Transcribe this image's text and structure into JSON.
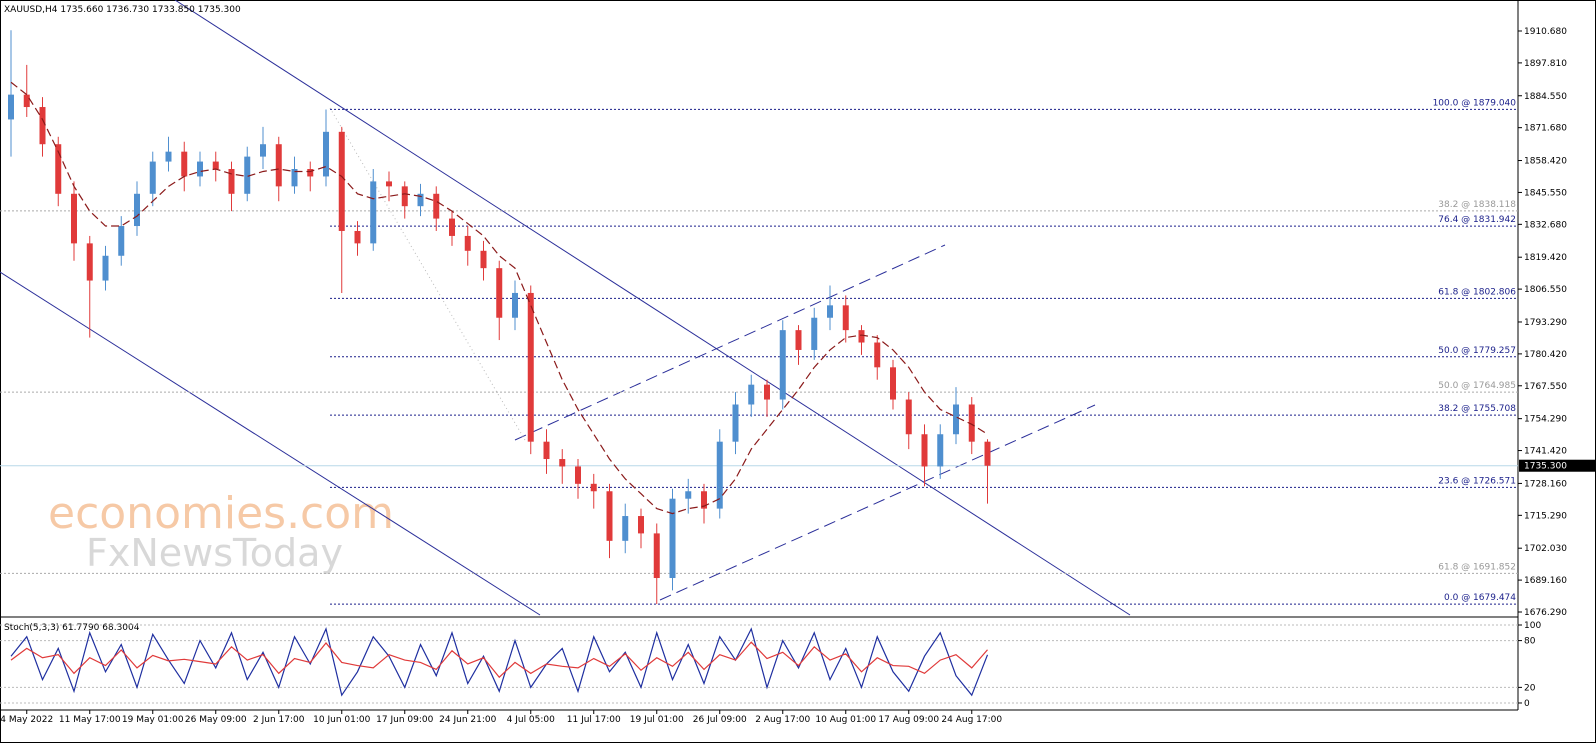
{
  "chart_data": [
    {
      "type": "candlestick",
      "title": "XAUUSD,H4  1735.660 1736.730 1733.850 1735.300",
      "watermark": [
        "economies.com",
        "FxNewsToday"
      ],
      "categories": [
        null,
        "4 May 2022",
        null,
        null,
        null,
        "11 May 17:00",
        null,
        null,
        null,
        "19 May 01:00",
        null,
        null,
        null,
        "26 May 09:00",
        null,
        null,
        null,
        "2 Jun 17:00",
        null,
        null,
        null,
        "10 Jun 01:00",
        null,
        null,
        null,
        "17 Jun 09:00",
        null,
        null,
        null,
        "24 Jun 21:00",
        null,
        null,
        null,
        "4 Jul 05:00",
        null,
        null,
        null,
        "11 Jul 17:00",
        null,
        null,
        null,
        "19 Jul 01:00",
        null,
        null,
        null,
        "26 Jul 09:00",
        null,
        null,
        null,
        "2 Aug 17:00",
        null,
        null,
        null,
        "10 Aug 01:00",
        null,
        null,
        null,
        "17 Aug 09:00",
        null,
        null,
        null,
        "24 Aug 17:00",
        null
      ],
      "open": [
        1875,
        1885,
        1880,
        1865,
        1845,
        1825,
        1810,
        1820,
        1832,
        1845,
        1858,
        1862,
        1852,
        1858,
        1855,
        1845,
        1860,
        1865,
        1848,
        1855,
        1852,
        1870,
        1830,
        1825,
        1850,
        1848,
        1840,
        1845,
        1835,
        1828,
        1822,
        1815,
        1795,
        1805,
        1745,
        1738,
        1735,
        1728,
        1725,
        1705,
        1715,
        1708,
        1690,
        1722,
        1725,
        1718,
        1745,
        1760,
        1768,
        1762,
        1790,
        1782,
        1795,
        1800,
        1790,
        1785,
        1775,
        1762,
        1748,
        1735,
        1748,
        1760,
        1745
      ],
      "high": [
        1911,
        1897,
        1884,
        1868,
        1850,
        1828,
        1824,
        1836,
        1850,
        1862,
        1868,
        1866,
        1862,
        1862,
        1858,
        1864,
        1872,
        1868,
        1860,
        1858,
        1879,
        1872,
        1834,
        1855,
        1854,
        1850,
        1849,
        1848,
        1838,
        1832,
        1826,
        1818,
        1810,
        1808,
        1750,
        1742,
        1738,
        1732,
        1728,
        1720,
        1718,
        1712,
        1726,
        1730,
        1728,
        1750,
        1765,
        1772,
        1770,
        1794,
        1792,
        1799,
        1808,
        1804,
        1792,
        1788,
        1778,
        1765,
        1752,
        1752,
        1767,
        1763,
        1746
      ],
      "low": [
        1860,
        1876,
        1860,
        1840,
        1818,
        1787,
        1806,
        1816,
        1828,
        1840,
        1854,
        1846,
        1848,
        1850,
        1838,
        1842,
        1855,
        1842,
        1845,
        1846,
        1848,
        1805,
        1820,
        1822,
        1842,
        1835,
        1836,
        1830,
        1824,
        1816,
        1810,
        1786,
        1790,
        1740,
        1732,
        1728,
        1722,
        1718,
        1698,
        1700,
        1702,
        1679.5,
        1685,
        1716,
        1712,
        1714,
        1740,
        1755,
        1755,
        1758,
        1776,
        1778,
        1790,
        1785,
        1780,
        1770,
        1758,
        1742,
        1727,
        1730,
        1744,
        1740,
        1720
      ],
      "close": [
        1885,
        1880,
        1865,
        1845,
        1825,
        1810,
        1820,
        1832,
        1845,
        1858,
        1862,
        1852,
        1858,
        1855,
        1845,
        1860,
        1865,
        1848,
        1855,
        1852,
        1870,
        1830,
        1825,
        1850,
        1848,
        1840,
        1845,
        1835,
        1828,
        1822,
        1815,
        1795,
        1805,
        1745,
        1738,
        1735,
        1728,
        1725,
        1705,
        1715,
        1708,
        1690,
        1722,
        1725,
        1718,
        1745,
        1760,
        1768,
        1762,
        1790,
        1782,
        1795,
        1800,
        1790,
        1785,
        1775,
        1762,
        1748,
        1735,
        1748,
        1760,
        1745,
        1735.3
      ],
      "up_color": "#4f8fcf",
      "down_color": "#e03a3a",
      "ma": {
        "color": "#8b1a1a",
        "values": [
          1890,
          1885,
          1875,
          1862,
          1848,
          1838,
          1832,
          1832,
          1836,
          1842,
          1848,
          1852,
          1854,
          1855,
          1853,
          1852,
          1854,
          1855,
          1854,
          1854,
          1856,
          1852,
          1845,
          1843,
          1844,
          1845,
          1844,
          1842,
          1838,
          1833,
          1828,
          1820,
          1815,
          1800,
          1785,
          1770,
          1758,
          1748,
          1738,
          1730,
          1724,
          1718,
          1716,
          1718,
          1719,
          1722,
          1730,
          1742,
          1750,
          1758,
          1766,
          1775,
          1782,
          1787,
          1788,
          1787,
          1782,
          1775,
          1765,
          1758,
          1755,
          1752,
          1748
        ]
      },
      "ylim": [
        1675.08,
        1923.18
      ],
      "yticks": [
        {
          "value": 1910.68,
          "label": "1910.680"
        },
        {
          "value": 1897.81,
          "label": "1897.810"
        },
        {
          "value": 1884.55,
          "label": "1884.550"
        },
        {
          "value": 1871.68,
          "label": "1871.680"
        },
        {
          "value": 1858.42,
          "label": "1858.420"
        },
        {
          "value": 1845.55,
          "label": "1845.550"
        },
        {
          "value": 1832.68,
          "label": "1832.680"
        },
        {
          "value": 1819.42,
          "label": "1819.420"
        },
        {
          "value": 1806.55,
          "label": "1806.550"
        },
        {
          "value": 1793.29,
          "label": "1793.290"
        },
        {
          "value": 1780.42,
          "label": "1780.420"
        },
        {
          "value": 1767.55,
          "label": "1767.550"
        },
        {
          "value": 1754.29,
          "label": "1754.290"
        },
        {
          "value": 1741.42,
          "label": "1741.420"
        },
        {
          "value": 1728.16,
          "label": "1728.160"
        },
        {
          "value": 1715.29,
          "label": "1715.290"
        },
        {
          "value": 1702.03,
          "label": "1702.030"
        },
        {
          "value": 1689.16,
          "label": "1689.160"
        },
        {
          "value": 1676.29,
          "label": "1676.290"
        }
      ],
      "last": {
        "value": 1735.3,
        "label": "1735.300"
      },
      "fib_main": [
        {
          "value": 1879.04,
          "label": "100.0 @ 1879.040"
        },
        {
          "value": 1831.942,
          "label": "76.4 @ 1831.942"
        },
        {
          "value": 1802.806,
          "label": "61.8 @ 1802.806"
        },
        {
          "value": 1779.257,
          "label": "50.0 @ 1779.257"
        },
        {
          "value": 1755.708,
          "label": "38.2 @ 1755.708"
        },
        {
          "value": 1726.571,
          "label": "23.6 @ 1726.571"
        },
        {
          "value": 1679.474,
          "label": "0.0 @ 1679.474"
        }
      ],
      "fib_other": [
        {
          "value": 1838.118,
          "label": "38.2 @ 1838.118"
        },
        {
          "value": 1764.985,
          "label": "50.0 @ 1764.985"
        },
        {
          "value": 1691.852,
          "label": "61.8 @ 1691.852"
        }
      ]
    },
    {
      "type": "line",
      "title": "Stoch(5,3,3) 61.7790 68.3004",
      "ylim": [
        -9,
        107.7
      ],
      "yticks": [
        100,
        80,
        20,
        0
      ],
      "series": [
        {
          "color": "#1f2fa0",
          "values": [
            60,
            85,
            30,
            70,
            15,
            90,
            40,
            75,
            20,
            88,
            55,
            25,
            80,
            45,
            90,
            30,
            65,
            20,
            85,
            50,
            95,
            10,
            40,
            85,
            60,
            20,
            75,
            35,
            90,
            25,
            60,
            15,
            80,
            20,
            50,
            70,
            15,
            85,
            40,
            65,
            20,
            90,
            30,
            75,
            25,
            85,
            55,
            95,
            20,
            80,
            45,
            90,
            30,
            70,
            20,
            85,
            40,
            15,
            60,
            90,
            35,
            10,
            61.779
          ]
        },
        {
          "color": "#e03a3a",
          "values": [
            55,
            70,
            58,
            62,
            38,
            58,
            48,
            68,
            45,
            61,
            54,
            56,
            53,
            50,
            72,
            55,
            62,
            38,
            57,
            52,
            77,
            52,
            48,
            45,
            62,
            55,
            52,
            43,
            67,
            50,
            58,
            33,
            52,
            38,
            50,
            47,
            45,
            57,
            47,
            63,
            42,
            58,
            47,
            65,
            43,
            62,
            55,
            78,
            57,
            65,
            48,
            72,
            55,
            63,
            40,
            58,
            48,
            47,
            38,
            55,
            62,
            45,
            68.3004
          ]
        }
      ]
    }
  ]
}
